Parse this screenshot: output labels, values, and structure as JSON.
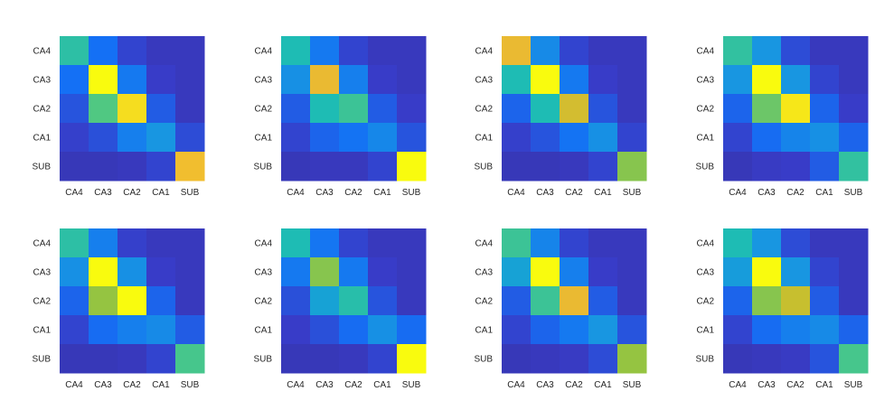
{
  "chart_data": [
    {
      "type": "heatmap",
      "row_labels": [
        "CA4",
        "CA3",
        "CA2",
        "CA1",
        "SUB"
      ],
      "col_labels": [
        "CA4",
        "CA3",
        "CA2",
        "CA1",
        "SUB"
      ],
      "clim": [
        0,
        1
      ],
      "colormap": "parula",
      "values": [
        [
          0.55,
          0.25,
          0.14,
          0.1,
          0.1
        ],
        [
          0.25,
          1.0,
          0.28,
          0.12,
          0.1
        ],
        [
          0.18,
          0.62,
          0.94,
          0.2,
          0.1
        ],
        [
          0.13,
          0.17,
          0.3,
          0.38,
          0.16
        ],
        [
          0.09,
          0.09,
          0.1,
          0.14,
          0.88
        ]
      ]
    },
    {
      "type": "heatmap",
      "row_labels": [
        "CA4",
        "CA3",
        "CA2",
        "CA1",
        "SUB"
      ],
      "col_labels": [
        "CA4",
        "CA3",
        "CA2",
        "CA1",
        "SUB"
      ],
      "clim": [
        0,
        1
      ],
      "colormap": "parula",
      "values": [
        [
          0.52,
          0.28,
          0.14,
          0.1,
          0.1
        ],
        [
          0.36,
          0.86,
          0.3,
          0.12,
          0.1
        ],
        [
          0.2,
          0.52,
          0.58,
          0.2,
          0.12
        ],
        [
          0.14,
          0.22,
          0.26,
          0.33,
          0.18
        ],
        [
          0.09,
          0.1,
          0.1,
          0.14,
          1.0
        ]
      ]
    },
    {
      "type": "heatmap",
      "row_labels": [
        "CA4",
        "CA3",
        "CA2",
        "CA1",
        "SUB"
      ],
      "col_labels": [
        "CA4",
        "CA3",
        "CA2",
        "CA1",
        "SUB"
      ],
      "clim": [
        0,
        1
      ],
      "colormap": "parula",
      "values": [
        [
          0.86,
          0.34,
          0.14,
          0.1,
          0.1
        ],
        [
          0.52,
          1.0,
          0.28,
          0.12,
          0.1
        ],
        [
          0.22,
          0.52,
          0.82,
          0.18,
          0.1
        ],
        [
          0.13,
          0.18,
          0.26,
          0.36,
          0.14
        ],
        [
          0.09,
          0.09,
          0.1,
          0.14,
          0.7
        ]
      ]
    },
    {
      "type": "heatmap",
      "row_labels": [
        "CA4",
        "CA3",
        "CA2",
        "CA1",
        "SUB"
      ],
      "col_labels": [
        "CA4",
        "CA3",
        "CA2",
        "CA1",
        "SUB"
      ],
      "clim": [
        0,
        1
      ],
      "colormap": "parula",
      "values": [
        [
          0.56,
          0.38,
          0.16,
          0.1,
          0.1
        ],
        [
          0.38,
          1.0,
          0.38,
          0.14,
          0.1
        ],
        [
          0.22,
          0.66,
          0.96,
          0.22,
          0.12
        ],
        [
          0.14,
          0.24,
          0.32,
          0.36,
          0.22
        ],
        [
          0.09,
          0.11,
          0.12,
          0.2,
          0.56
        ]
      ]
    },
    {
      "type": "heatmap",
      "row_labels": [
        "CA4",
        "CA3",
        "CA2",
        "CA1",
        "SUB"
      ],
      "col_labels": [
        "CA4",
        "CA3",
        "CA2",
        "CA1",
        "SUB"
      ],
      "clim": [
        0,
        1
      ],
      "colormap": "parula",
      "values": [
        [
          0.55,
          0.3,
          0.13,
          0.1,
          0.1
        ],
        [
          0.36,
          1.0,
          0.36,
          0.12,
          0.1
        ],
        [
          0.22,
          0.72,
          1.0,
          0.22,
          0.1
        ],
        [
          0.14,
          0.24,
          0.3,
          0.34,
          0.2
        ],
        [
          0.09,
          0.09,
          0.1,
          0.14,
          0.6
        ]
      ]
    },
    {
      "type": "heatmap",
      "row_labels": [
        "CA4",
        "CA3",
        "CA2",
        "CA1",
        "SUB"
      ],
      "col_labels": [
        "CA4",
        "CA3",
        "CA2",
        "CA1",
        "SUB"
      ],
      "clim": [
        0,
        1
      ],
      "colormap": "parula",
      "values": [
        [
          0.52,
          0.27,
          0.14,
          0.1,
          0.1
        ],
        [
          0.28,
          0.7,
          0.28,
          0.12,
          0.1
        ],
        [
          0.17,
          0.42,
          0.54,
          0.18,
          0.1
        ],
        [
          0.12,
          0.17,
          0.24,
          0.36,
          0.24
        ],
        [
          0.09,
          0.09,
          0.1,
          0.14,
          1.0
        ]
      ]
    },
    {
      "type": "heatmap",
      "row_labels": [
        "CA4",
        "CA3",
        "CA2",
        "CA1",
        "SUB"
      ],
      "col_labels": [
        "CA4",
        "CA3",
        "CA2",
        "CA1",
        "SUB"
      ],
      "clim": [
        0,
        1
      ],
      "colormap": "parula",
      "values": [
        [
          0.58,
          0.32,
          0.14,
          0.1,
          0.1
        ],
        [
          0.42,
          1.0,
          0.3,
          0.12,
          0.1
        ],
        [
          0.2,
          0.58,
          0.86,
          0.2,
          0.1
        ],
        [
          0.14,
          0.22,
          0.28,
          0.38,
          0.18
        ],
        [
          0.09,
          0.1,
          0.11,
          0.16,
          0.72
        ]
      ]
    },
    {
      "type": "heatmap",
      "row_labels": [
        "CA4",
        "CA3",
        "CA2",
        "CA1",
        "SUB"
      ],
      "col_labels": [
        "CA4",
        "CA3",
        "CA2",
        "CA1",
        "SUB"
      ],
      "clim": [
        0,
        1
      ],
      "colormap": "parula",
      "values": [
        [
          0.52,
          0.38,
          0.16,
          0.1,
          0.1
        ],
        [
          0.4,
          1.0,
          0.38,
          0.14,
          0.1
        ],
        [
          0.22,
          0.7,
          0.8,
          0.2,
          0.1
        ],
        [
          0.14,
          0.24,
          0.3,
          0.34,
          0.22
        ],
        [
          0.09,
          0.1,
          0.11,
          0.18,
          0.6
        ]
      ]
    }
  ]
}
